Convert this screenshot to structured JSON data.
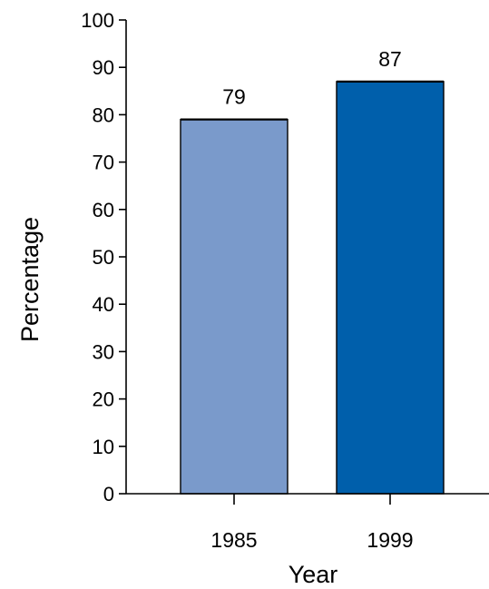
{
  "chart_data": {
    "type": "bar",
    "categories": [
      "1985",
      "1999"
    ],
    "values": [
      79,
      87
    ],
    "value_labels": [
      "79",
      "87"
    ],
    "bar_colors": [
      "#7a9acb",
      "#005fab"
    ],
    "xlabel": "Year",
    "ylabel": "Percentage",
    "ylim": [
      0,
      100
    ],
    "yticks": [
      0,
      10,
      20,
      30,
      40,
      50,
      60,
      70,
      80,
      90,
      100
    ],
    "grid": false,
    "legend": "none"
  }
}
